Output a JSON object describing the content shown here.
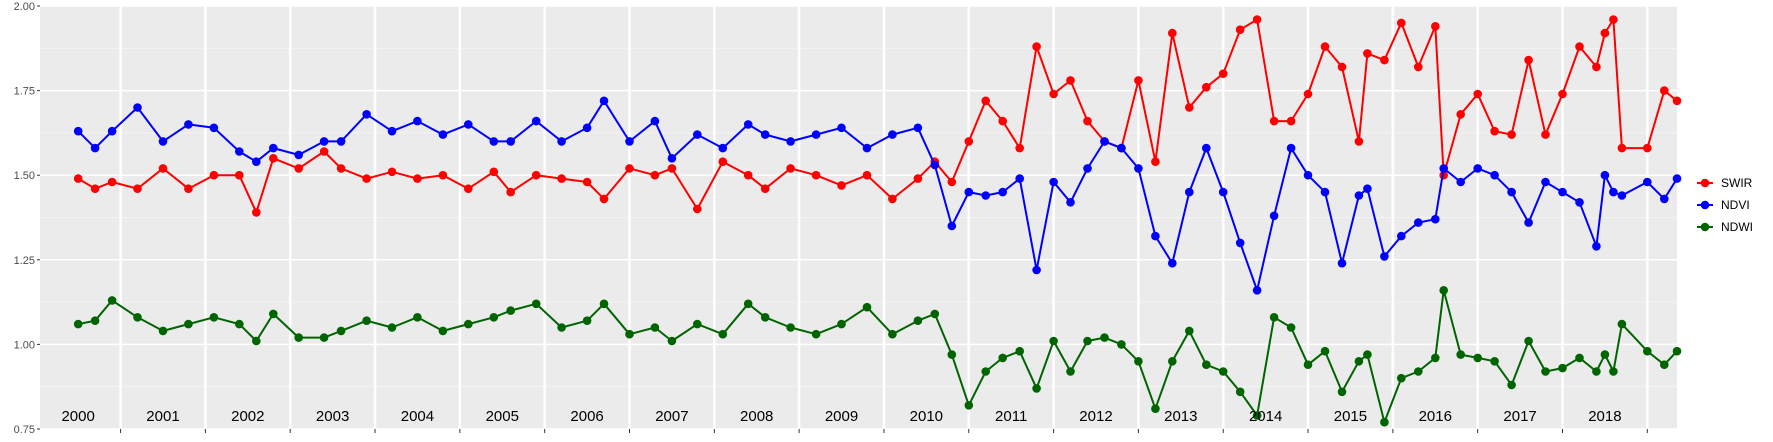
{
  "chart_data": {
    "type": "line",
    "title": "",
    "xlabel": "",
    "ylabel": "",
    "ylim": [
      0.75,
      2.0
    ],
    "xlim": [
      1999.55,
      2018.85
    ],
    "y_ticks": [
      0.75,
      1.0,
      1.25,
      1.5,
      1.75,
      2.0
    ],
    "y_tick_labels": [
      "0.75",
      "1.00",
      "1.25",
      "1.50",
      "1.75",
      "2.00"
    ],
    "year_labels": [
      "2000",
      "2001",
      "2002",
      "2003",
      "2004",
      "2005",
      "2006",
      "2007",
      "2008",
      "2009",
      "2010",
      "2011",
      "2012",
      "2013",
      "2014",
      "2015",
      "2016",
      "2017",
      "2018"
    ],
    "grid": true,
    "legend_position": "right",
    "series": [
      {
        "name": "SWIR",
        "color": "#ff0000",
        "points": [
          [
            2000.0,
            1.49
          ],
          [
            2000.2,
            1.46
          ],
          [
            2000.4,
            1.48
          ],
          [
            2000.7,
            1.46
          ],
          [
            2001.0,
            1.52
          ],
          [
            2001.3,
            1.46
          ],
          [
            2001.6,
            1.5
          ],
          [
            2001.9,
            1.5
          ],
          [
            2002.1,
            1.39
          ],
          [
            2002.3,
            1.55
          ],
          [
            2002.6,
            1.52
          ],
          [
            2002.9,
            1.57
          ],
          [
            2003.1,
            1.52
          ],
          [
            2003.4,
            1.49
          ],
          [
            2003.7,
            1.51
          ],
          [
            2004.0,
            1.49
          ],
          [
            2004.3,
            1.5
          ],
          [
            2004.6,
            1.46
          ],
          [
            2004.9,
            1.51
          ],
          [
            2005.1,
            1.45
          ],
          [
            2005.4,
            1.5
          ],
          [
            2005.7,
            1.49
          ],
          [
            2006.0,
            1.48
          ],
          [
            2006.2,
            1.43
          ],
          [
            2006.5,
            1.52
          ],
          [
            2006.8,
            1.5
          ],
          [
            2007.0,
            1.52
          ],
          [
            2007.3,
            1.4
          ],
          [
            2007.6,
            1.54
          ],
          [
            2007.9,
            1.5
          ],
          [
            2008.1,
            1.46
          ],
          [
            2008.4,
            1.52
          ],
          [
            2008.7,
            1.5
          ],
          [
            2009.0,
            1.47
          ],
          [
            2009.3,
            1.5
          ],
          [
            2009.6,
            1.43
          ],
          [
            2009.9,
            1.49
          ],
          [
            2010.1,
            1.54
          ],
          [
            2010.3,
            1.48
          ],
          [
            2010.5,
            1.6
          ],
          [
            2010.7,
            1.72
          ],
          [
            2010.9,
            1.66
          ],
          [
            2011.1,
            1.58
          ],
          [
            2011.3,
            1.88
          ],
          [
            2011.5,
            1.74
          ],
          [
            2011.7,
            1.78
          ],
          [
            2011.9,
            1.66
          ],
          [
            2012.1,
            1.6
          ],
          [
            2012.3,
            1.58
          ],
          [
            2012.5,
            1.78
          ],
          [
            2012.7,
            1.54
          ],
          [
            2012.9,
            1.92
          ],
          [
            2013.1,
            1.7
          ],
          [
            2013.3,
            1.76
          ],
          [
            2013.5,
            1.8
          ],
          [
            2013.7,
            1.93
          ],
          [
            2013.9,
            1.96
          ],
          [
            2014.1,
            1.66
          ],
          [
            2014.3,
            1.66
          ],
          [
            2014.5,
            1.74
          ],
          [
            2014.7,
            1.88
          ],
          [
            2014.9,
            1.82
          ],
          [
            2015.1,
            1.6
          ],
          [
            2015.2,
            1.86
          ],
          [
            2015.4,
            1.84
          ],
          [
            2015.6,
            1.95
          ],
          [
            2015.8,
            1.82
          ],
          [
            2016.0,
            1.94
          ],
          [
            2016.1,
            1.5
          ],
          [
            2016.3,
            1.68
          ],
          [
            2016.5,
            1.74
          ],
          [
            2016.7,
            1.63
          ],
          [
            2016.9,
            1.62
          ],
          [
            2017.1,
            1.84
          ],
          [
            2017.3,
            1.62
          ],
          [
            2017.5,
            1.74
          ],
          [
            2017.7,
            1.88
          ],
          [
            2017.9,
            1.82
          ],
          [
            2018.0,
            1.92
          ],
          [
            2018.1,
            1.96
          ],
          [
            2018.2,
            1.58
          ],
          [
            2018.5,
            1.58
          ],
          [
            2018.7,
            1.75
          ],
          [
            2018.85,
            1.72
          ]
        ]
      },
      {
        "name": "NDVI",
        "color": "#0000ff",
        "points": [
          [
            2000.0,
            1.63
          ],
          [
            2000.2,
            1.58
          ],
          [
            2000.4,
            1.63
          ],
          [
            2000.7,
            1.7
          ],
          [
            2001.0,
            1.6
          ],
          [
            2001.3,
            1.65
          ],
          [
            2001.6,
            1.64
          ],
          [
            2001.9,
            1.57
          ],
          [
            2002.1,
            1.54
          ],
          [
            2002.3,
            1.58
          ],
          [
            2002.6,
            1.56
          ],
          [
            2002.9,
            1.6
          ],
          [
            2003.1,
            1.6
          ],
          [
            2003.4,
            1.68
          ],
          [
            2003.7,
            1.63
          ],
          [
            2004.0,
            1.66
          ],
          [
            2004.3,
            1.62
          ],
          [
            2004.6,
            1.65
          ],
          [
            2004.9,
            1.6
          ],
          [
            2005.1,
            1.6
          ],
          [
            2005.4,
            1.66
          ],
          [
            2005.7,
            1.6
          ],
          [
            2006.0,
            1.64
          ],
          [
            2006.2,
            1.72
          ],
          [
            2006.5,
            1.6
          ],
          [
            2006.8,
            1.66
          ],
          [
            2007.0,
            1.55
          ],
          [
            2007.3,
            1.62
          ],
          [
            2007.6,
            1.58
          ],
          [
            2007.9,
            1.65
          ],
          [
            2008.1,
            1.62
          ],
          [
            2008.4,
            1.6
          ],
          [
            2008.7,
            1.62
          ],
          [
            2009.0,
            1.64
          ],
          [
            2009.3,
            1.58
          ],
          [
            2009.6,
            1.62
          ],
          [
            2009.9,
            1.64
          ],
          [
            2010.1,
            1.53
          ],
          [
            2010.3,
            1.35
          ],
          [
            2010.5,
            1.45
          ],
          [
            2010.7,
            1.44
          ],
          [
            2010.9,
            1.45
          ],
          [
            2011.1,
            1.49
          ],
          [
            2011.3,
            1.22
          ],
          [
            2011.5,
            1.48
          ],
          [
            2011.7,
            1.42
          ],
          [
            2011.9,
            1.52
          ],
          [
            2012.1,
            1.6
          ],
          [
            2012.3,
            1.58
          ],
          [
            2012.5,
            1.52
          ],
          [
            2012.7,
            1.32
          ],
          [
            2012.9,
            1.24
          ],
          [
            2013.1,
            1.45
          ],
          [
            2013.3,
            1.58
          ],
          [
            2013.5,
            1.45
          ],
          [
            2013.7,
            1.3
          ],
          [
            2013.9,
            1.16
          ],
          [
            2014.1,
            1.38
          ],
          [
            2014.3,
            1.58
          ],
          [
            2014.5,
            1.5
          ],
          [
            2014.7,
            1.45
          ],
          [
            2014.9,
            1.24
          ],
          [
            2015.1,
            1.44
          ],
          [
            2015.2,
            1.46
          ],
          [
            2015.4,
            1.26
          ],
          [
            2015.6,
            1.32
          ],
          [
            2015.8,
            1.36
          ],
          [
            2016.0,
            1.37
          ],
          [
            2016.1,
            1.52
          ],
          [
            2016.3,
            1.48
          ],
          [
            2016.5,
            1.52
          ],
          [
            2016.7,
            1.5
          ],
          [
            2016.9,
            1.45
          ],
          [
            2017.1,
            1.36
          ],
          [
            2017.3,
            1.48
          ],
          [
            2017.5,
            1.45
          ],
          [
            2017.7,
            1.42
          ],
          [
            2017.9,
            1.29
          ],
          [
            2018.0,
            1.5
          ],
          [
            2018.1,
            1.45
          ],
          [
            2018.2,
            1.44
          ],
          [
            2018.5,
            1.48
          ],
          [
            2018.7,
            1.43
          ],
          [
            2018.85,
            1.49
          ]
        ]
      },
      {
        "name": "NDWI",
        "color": "#006400",
        "points": [
          [
            2000.0,
            1.06
          ],
          [
            2000.2,
            1.07
          ],
          [
            2000.4,
            1.13
          ],
          [
            2000.7,
            1.08
          ],
          [
            2001.0,
            1.04
          ],
          [
            2001.3,
            1.06
          ],
          [
            2001.6,
            1.08
          ],
          [
            2001.9,
            1.06
          ],
          [
            2002.1,
            1.01
          ],
          [
            2002.3,
            1.09
          ],
          [
            2002.6,
            1.02
          ],
          [
            2002.9,
            1.02
          ],
          [
            2003.1,
            1.04
          ],
          [
            2003.4,
            1.07
          ],
          [
            2003.7,
            1.05
          ],
          [
            2004.0,
            1.08
          ],
          [
            2004.3,
            1.04
          ],
          [
            2004.6,
            1.06
          ],
          [
            2004.9,
            1.08
          ],
          [
            2005.1,
            1.1
          ],
          [
            2005.4,
            1.12
          ],
          [
            2005.7,
            1.05
          ],
          [
            2006.0,
            1.07
          ],
          [
            2006.2,
            1.12
          ],
          [
            2006.5,
            1.03
          ],
          [
            2006.8,
            1.05
          ],
          [
            2007.0,
            1.01
          ],
          [
            2007.3,
            1.06
          ],
          [
            2007.6,
            1.03
          ],
          [
            2007.9,
            1.12
          ],
          [
            2008.1,
            1.08
          ],
          [
            2008.4,
            1.05
          ],
          [
            2008.7,
            1.03
          ],
          [
            2009.0,
            1.06
          ],
          [
            2009.3,
            1.11
          ],
          [
            2009.6,
            1.03
          ],
          [
            2009.9,
            1.07
          ],
          [
            2010.1,
            1.09
          ],
          [
            2010.3,
            0.97
          ],
          [
            2010.5,
            0.82
          ],
          [
            2010.7,
            0.92
          ],
          [
            2010.9,
            0.96
          ],
          [
            2011.1,
            0.98
          ],
          [
            2011.3,
            0.87
          ],
          [
            2011.5,
            1.01
          ],
          [
            2011.7,
            0.92
          ],
          [
            2011.9,
            1.01
          ],
          [
            2012.1,
            1.02
          ],
          [
            2012.3,
            1.0
          ],
          [
            2012.5,
            0.95
          ],
          [
            2012.7,
            0.81
          ],
          [
            2012.9,
            0.95
          ],
          [
            2013.1,
            1.04
          ],
          [
            2013.3,
            0.94
          ],
          [
            2013.5,
            0.92
          ],
          [
            2013.7,
            0.86
          ],
          [
            2013.9,
            0.79
          ],
          [
            2014.1,
            1.08
          ],
          [
            2014.3,
            1.05
          ],
          [
            2014.5,
            0.94
          ],
          [
            2014.7,
            0.98
          ],
          [
            2014.9,
            0.86
          ],
          [
            2015.1,
            0.95
          ],
          [
            2015.2,
            0.97
          ],
          [
            2015.4,
            0.77
          ],
          [
            2015.6,
            0.9
          ],
          [
            2015.8,
            0.92
          ],
          [
            2016.0,
            0.96
          ],
          [
            2016.1,
            1.16
          ],
          [
            2016.3,
            0.97
          ],
          [
            2016.5,
            0.96
          ],
          [
            2016.7,
            0.95
          ],
          [
            2016.9,
            0.88
          ],
          [
            2017.1,
            1.01
          ],
          [
            2017.3,
            0.92
          ],
          [
            2017.5,
            0.93
          ],
          [
            2017.7,
            0.96
          ],
          [
            2017.9,
            0.92
          ],
          [
            2018.0,
            0.97
          ],
          [
            2018.1,
            0.92
          ],
          [
            2018.2,
            1.06
          ],
          [
            2018.5,
            0.98
          ],
          [
            2018.7,
            0.94
          ],
          [
            2018.85,
            0.98
          ]
        ]
      }
    ]
  }
}
